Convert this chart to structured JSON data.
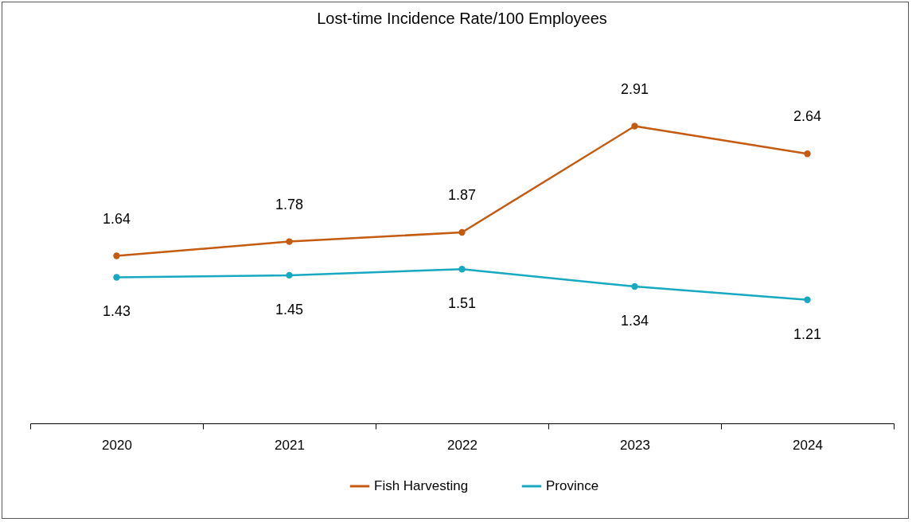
{
  "chart_data": {
    "type": "line",
    "title": "Lost-time Incidence Rate/100 Employees",
    "categories": [
      "2020",
      "2021",
      "2022",
      "2023",
      "2024"
    ],
    "series": [
      {
        "name": "Fish Harvesting",
        "color": "#c55a11",
        "values": [
          1.64,
          1.78,
          1.87,
          2.91,
          2.64
        ]
      },
      {
        "name": "Province",
        "color": "#17a9c1",
        "values": [
          1.43,
          1.45,
          1.51,
          1.34,
          1.21
        ]
      }
    ],
    "data_labels": true,
    "legend": "bottom",
    "marker": "circle",
    "grid": false,
    "tick_labels": "x"
  }
}
